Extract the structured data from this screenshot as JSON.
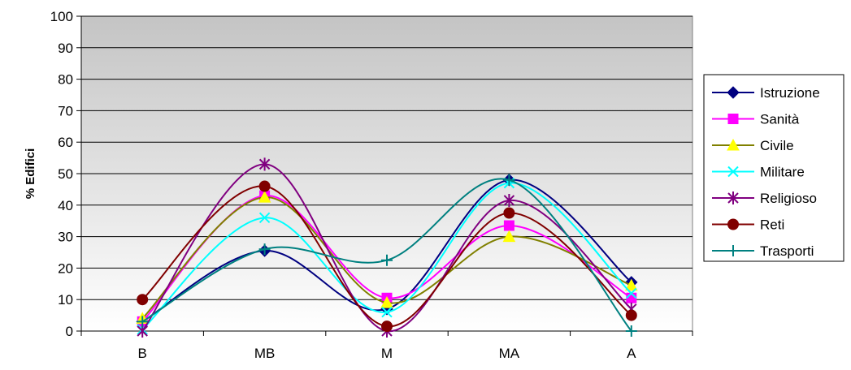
{
  "chart_data": {
    "type": "line",
    "title": "",
    "xlabel": "",
    "ylabel": "% Edifici",
    "categories": [
      "B",
      "MB",
      "M",
      "MA",
      "A"
    ],
    "ylim": [
      0,
      100
    ],
    "yticks": [
      0,
      10,
      20,
      30,
      40,
      50,
      60,
      70,
      80,
      90,
      100
    ],
    "smooth": true,
    "legend": "right",
    "background": "gray-gradient",
    "gridlines": "horizontal",
    "series": [
      {
        "name": "Istruzione",
        "values": [
          3,
          25.5,
          7,
          48,
          15.5
        ],
        "color": "#000080",
        "marker": "diamond"
      },
      {
        "name": "Sanità",
        "values": [
          3,
          43,
          10.5,
          33.5,
          10.5
        ],
        "color": "#FF00FF",
        "marker": "square"
      },
      {
        "name": "Civile",
        "values": [
          4,
          42.5,
          9,
          30,
          14.5
        ],
        "color": "#808000",
        "marker": "triangle"
      },
      {
        "name": "Militare",
        "values": [
          0.5,
          36,
          6,
          47,
          12
        ],
        "color": "#00FFFF",
        "marker": "x"
      },
      {
        "name": "Religioso",
        "values": [
          0,
          53,
          0,
          41.5,
          7
        ],
        "color": "#800080",
        "marker": "star"
      },
      {
        "name": "Reti",
        "values": [
          10,
          46,
          1.5,
          37.5,
          5
        ],
        "color": "#800000",
        "marker": "circle"
      },
      {
        "name": "Trasporti",
        "values": [
          3,
          26,
          22.5,
          48,
          0
        ],
        "color": "#008080",
        "marker": "plus"
      }
    ]
  }
}
